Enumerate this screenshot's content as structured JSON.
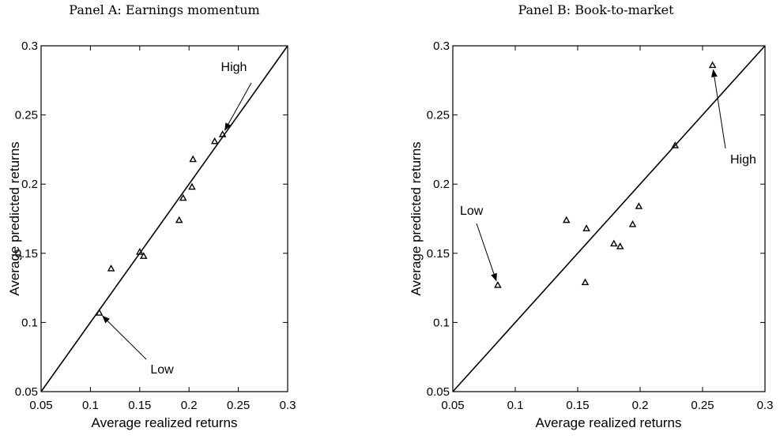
{
  "chart_data": [
    {
      "type": "scatter",
      "title": "Panel A: Earnings momentum",
      "xlabel": "Average realized returns",
      "ylabel": "Average predicted returns",
      "xlim": [
        0.05,
        0.3
      ],
      "ylim": [
        0.05,
        0.3
      ],
      "xticks": [
        "0.05",
        "0.1",
        "0.15",
        "0.2",
        "0.25",
        "0.3"
      ],
      "yticks": [
        "0.05",
        "0.1",
        "0.15",
        "0.2",
        "0.25",
        "0.3"
      ],
      "grid": false,
      "reference_line": "45-degree",
      "marker": "triangle",
      "points": [
        {
          "x": 0.109,
          "y": 0.107
        },
        {
          "x": 0.121,
          "y": 0.139
        },
        {
          "x": 0.15,
          "y": 0.151
        },
        {
          "x": 0.154,
          "y": 0.148
        },
        {
          "x": 0.19,
          "y": 0.174
        },
        {
          "x": 0.194,
          "y": 0.19
        },
        {
          "x": 0.203,
          "y": 0.198
        },
        {
          "x": 0.204,
          "y": 0.218
        },
        {
          "x": 0.226,
          "y": 0.231
        },
        {
          "x": 0.234,
          "y": 0.236
        }
      ],
      "annotations": [
        {
          "text": "High",
          "point_index": 9
        },
        {
          "text": "Low",
          "point_index": 0
        }
      ]
    },
    {
      "type": "scatter",
      "title": "Panel B: Book-to-market",
      "xlabel": "Average realized returns",
      "ylabel": "Average predicted returns",
      "xlim": [
        0.05,
        0.3
      ],
      "ylim": [
        0.05,
        0.3
      ],
      "xticks": [
        "0.05",
        "0.1",
        "0.15",
        "0.2",
        "0.25",
        "0.3"
      ],
      "yticks": [
        "0.05",
        "0.1",
        "0.15",
        "0.2",
        "0.25",
        "0.3"
      ],
      "grid": false,
      "reference_line": "45-degree",
      "marker": "triangle",
      "points": [
        {
          "x": 0.086,
          "y": 0.127
        },
        {
          "x": 0.141,
          "y": 0.174
        },
        {
          "x": 0.156,
          "y": 0.129
        },
        {
          "x": 0.157,
          "y": 0.168
        },
        {
          "x": 0.179,
          "y": 0.157
        },
        {
          "x": 0.184,
          "y": 0.155
        },
        {
          "x": 0.194,
          "y": 0.171
        },
        {
          "x": 0.199,
          "y": 0.184
        },
        {
          "x": 0.228,
          "y": 0.228
        },
        {
          "x": 0.258,
          "y": 0.286
        }
      ],
      "annotations": [
        {
          "text": "Low",
          "point_index": 0
        },
        {
          "text": "High",
          "point_index": 9
        }
      ]
    }
  ]
}
